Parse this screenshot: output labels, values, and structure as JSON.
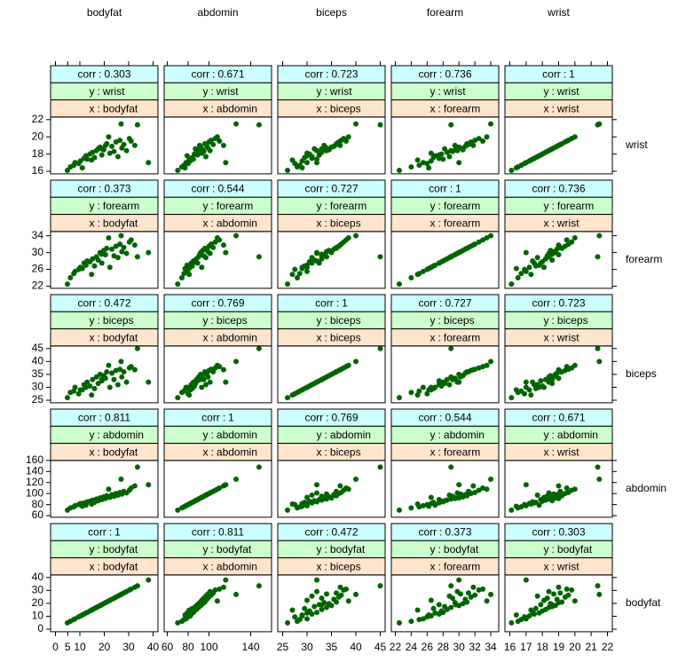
{
  "chart_data": {
    "type": "scatter-matrix",
    "strip_names": [
      "corr",
      "y",
      "x"
    ],
    "separator": ":",
    "strip_colors": [
      "#ccffff",
      "#ccffcc",
      "#ffe5cc"
    ],
    "color": "#006400",
    "corr": [
      [
        1,
        0.811,
        0.472,
        0.373,
        0.303
      ],
      [
        0.811,
        1,
        0.769,
        0.544,
        0.671
      ],
      [
        0.472,
        0.769,
        1,
        0.727,
        0.723
      ],
      [
        0.373,
        0.544,
        0.727,
        1,
        0.736
      ],
      [
        0.303,
        0.671,
        0.723,
        0.736,
        1
      ]
    ],
    "variables": [
      {
        "name": "bodyfat",
        "lim": [
          -2,
          42
        ],
        "xticks": [
          0,
          5,
          10,
          20,
          30,
          40
        ],
        "yticks": [
          0,
          10,
          20,
          30,
          40
        ],
        "values": [
          4.9,
          6.1,
          8.0,
          9.5,
          10.2,
          11.7,
          12.5,
          13.0,
          14.1,
          15.2,
          16.0,
          16.8,
          17.5,
          18.3,
          19.0,
          19.8,
          20.5,
          21.0,
          22.3,
          23.1,
          24.0,
          24.8,
          25.6,
          26.4,
          27.2,
          28.0,
          29.1,
          30.3,
          31.0,
          32.5,
          33.6,
          38.1,
          7.5,
          14.8,
          21.8,
          26.9,
          11.0,
          18.9
        ]
      },
      {
        "name": "abdomin",
        "lim": [
          57,
          160
        ],
        "xticks": [
          60,
          80,
          100,
          140
        ],
        "yticks": [
          60,
          80,
          100,
          120,
          140,
          160
        ],
        "values": [
          70,
          74,
          78,
          80,
          82,
          83,
          79,
          85,
          86,
          88,
          84,
          90,
          87,
          92,
          89,
          94,
          91,
          96,
          93,
          98,
          95,
          100,
          97,
          102,
          99,
          104,
          101,
          106,
          110,
          114,
          148,
          116,
          76,
          81,
          108,
          126,
          77,
          92
        ]
      },
      {
        "name": "biceps",
        "lim": [
          24,
          46
        ],
        "xticks": [
          25,
          30,
          35,
          40,
          45
        ],
        "yticks": [
          25,
          30,
          35,
          40,
          45
        ],
        "values": [
          26,
          28,
          30,
          27.5,
          29,
          31,
          30,
          32,
          30.5,
          33,
          29.5,
          34,
          31.5,
          35,
          32.5,
          34.5,
          33.5,
          36,
          30,
          35.5,
          33,
          36.5,
          31,
          37,
          34,
          36,
          32,
          37.5,
          38,
          36.8,
          45,
          32,
          28.5,
          27,
          38.5,
          40,
          29,
          33
        ]
      },
      {
        "name": "forearm",
        "lim": [
          21.5,
          35
        ],
        "xticks": [
          22,
          24,
          26,
          28,
          30,
          32,
          34
        ],
        "yticks": [
          22,
          26,
          30,
          34
        ],
        "values": [
          22.5,
          24.0,
          25.5,
          26.0,
          26.5,
          27.5,
          27.0,
          28.0,
          27.8,
          28.5,
          26.8,
          29.0,
          28.2,
          30.0,
          27.5,
          30.5,
          29.5,
          31.0,
          26.5,
          30.8,
          29.2,
          31.5,
          28.8,
          32.0,
          30.2,
          31.2,
          29.8,
          32.5,
          33.0,
          31.8,
          29.0,
          30.0,
          25.0,
          24.8,
          33.5,
          34.0,
          26.2,
          29.6
        ]
      },
      {
        "name": "wrist",
        "lim": [
          15.7,
          22.3
        ],
        "xticks": [
          16,
          17,
          18,
          19,
          20,
          21,
          22
        ],
        "yticks": [
          16,
          18,
          20,
          22
        ],
        "values": [
          16.1,
          16.5,
          17.0,
          16.9,
          17.2,
          17.5,
          17.8,
          17.4,
          18.0,
          18.2,
          17.6,
          18.4,
          18.6,
          18.8,
          17.9,
          18.5,
          19.0,
          19.2,
          18.1,
          18.9,
          18.3,
          19.4,
          17.7,
          19.6,
          18.7,
          19.1,
          18.4,
          19.8,
          19.5,
          19.0,
          21.4,
          17.0,
          16.7,
          17.3,
          20.0,
          21.5,
          16.4,
          18.6
        ]
      }
    ]
  }
}
